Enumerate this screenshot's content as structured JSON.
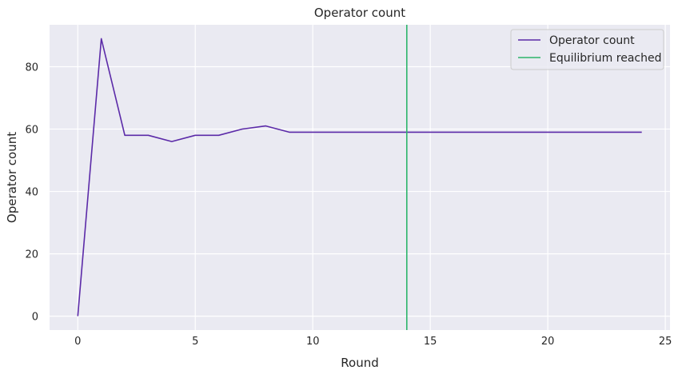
{
  "chart_data": {
    "type": "line",
    "title": "Operator count",
    "xlabel": "Round",
    "ylabel": "Operator count",
    "xlim": [
      -1.2,
      25.2
    ],
    "ylim": [
      -4.45,
      93.45
    ],
    "xticks": [
      0,
      5,
      10,
      15,
      20,
      25
    ],
    "yticks": [
      0,
      20,
      40,
      60,
      80
    ],
    "grid": true,
    "legend_position": "top-right",
    "background_color": "#eaeaf2",
    "grid_color": "#ffffff",
    "series": [
      {
        "name": "Operator count",
        "color": "#5b2aa8",
        "x": [
          0,
          1,
          2,
          3,
          4,
          5,
          6,
          7,
          8,
          9,
          10,
          11,
          12,
          13,
          14,
          15,
          16,
          17,
          18,
          19,
          20,
          21,
          22,
          23,
          24
        ],
        "y": [
          0,
          89,
          58,
          58,
          56,
          58,
          58,
          60,
          61,
          59,
          59,
          59,
          59,
          59,
          59,
          59,
          59,
          59,
          59,
          59,
          59,
          59,
          59,
          59,
          59
        ]
      }
    ],
    "vlines": [
      {
        "name": "Equilibrium reached",
        "x": 14,
        "color": "#2db56b"
      }
    ]
  }
}
